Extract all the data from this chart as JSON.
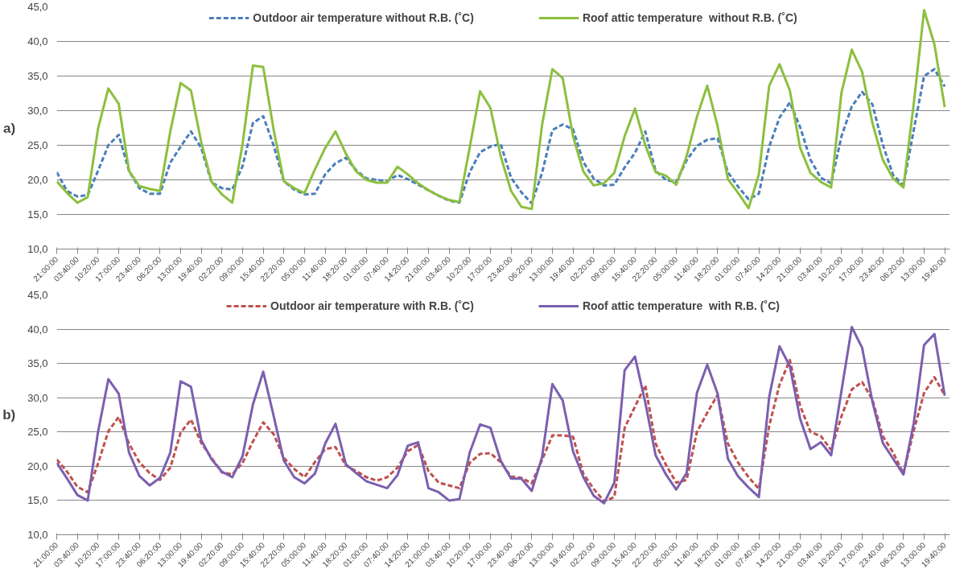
{
  "chart_data": [
    {
      "type": "line",
      "annotations": [
        "a)"
      ],
      "ylim": [
        10,
        45
      ],
      "yticks": [
        {
          "value": 10,
          "label": "10,0"
        },
        {
          "value": 15,
          "label": "15,0"
        },
        {
          "value": 20,
          "label": "20,0"
        },
        {
          "value": 25,
          "label": "25,0"
        },
        {
          "value": 30,
          "label": "30,0"
        },
        {
          "value": 35,
          "label": "35,0"
        },
        {
          "value": 40,
          "label": "40,0"
        },
        {
          "value": 45,
          "label": "45,0"
        }
      ],
      "categories": [
        "21:00:00",
        null,
        "03:40:00",
        null,
        "10:20:00",
        null,
        "17:00:00",
        null,
        "23:40:00",
        null,
        "06:20:00",
        null,
        "13:00:00",
        null,
        "19:40:00",
        null,
        "02:20:00",
        null,
        "09:00:00",
        null,
        "15:40:00",
        null,
        "22:20:00",
        null,
        "05:00:00",
        null,
        "11:40:00",
        null,
        "18:20:00",
        null,
        "01:00:00",
        null,
        "07:40:00",
        null,
        "14:20:00",
        null,
        "21:00:00",
        null,
        "03:40:00",
        null,
        "10:20:00",
        null,
        "17:00:00",
        null,
        "23:40:00",
        null,
        "06:20:00",
        null,
        "13:00:00",
        null,
        "19:40:00",
        null,
        "02:20:00",
        null,
        "09:00:00",
        null,
        "15:40:00",
        null,
        "22:20:00",
        null,
        "05:00:00",
        null,
        "11:40:00",
        null,
        "18:20:00",
        null,
        "01:00:00",
        null,
        "07:40:00",
        null,
        "14:20:00",
        null,
        "21:00:00",
        null,
        "03:40:00",
        null,
        "10:20:00",
        null,
        "17:00:00",
        null,
        "23:40:00",
        null,
        "06:20:00",
        null,
        "13:00:00",
        null,
        "19:40:00"
      ],
      "grid": "y",
      "legend": "top",
      "marker": "none",
      "series": [
        {
          "name": "Outdoor air temperature without R.B. (˚C)",
          "color": "#4a7ebb",
          "line_style": "dashed",
          "values": [
            21.1,
            18.4,
            17.6,
            17.8,
            21.3,
            25.0,
            26.5,
            21.3,
            18.8,
            18.0,
            18.0,
            22.5,
            24.8,
            27.0,
            24.6,
            19.6,
            18.8,
            18.6,
            22.0,
            28.2,
            29.2,
            25.0,
            19.8,
            18.6,
            17.9,
            18.0,
            20.8,
            22.4,
            23.2,
            21.4,
            20.2,
            20.0,
            19.8,
            20.7,
            20.1,
            19.3,
            18.5,
            17.7,
            17.0,
            16.7,
            21.1,
            24.0,
            24.8,
            25.2,
            20.3,
            18.2,
            16.6,
            21.0,
            27.2,
            28.0,
            27.3,
            22.6,
            20.2,
            19.2,
            19.3,
            21.8,
            23.9,
            27.0,
            21.3,
            20.0,
            19.7,
            22.8,
            24.9,
            25.8,
            26.0,
            21.1,
            19.0,
            17.2,
            18.0,
            24.8,
            29.0,
            31.2,
            27.6,
            22.9,
            20.3,
            19.5,
            26.3,
            30.6,
            32.7,
            30.9,
            25.1,
            20.7,
            19.2,
            27.2,
            35.0,
            36.0,
            33.5
          ]
        },
        {
          "name": "Roof attic temperature  without R.B. (˚C)",
          "color": "#8cbf3f",
          "line_style": "solid",
          "values": [
            19.8,
            18.1,
            16.7,
            17.5,
            27.4,
            33.2,
            31.0,
            21.3,
            19.1,
            18.7,
            18.4,
            27.0,
            34.0,
            32.9,
            25.4,
            19.7,
            17.9,
            16.7,
            25.2,
            36.5,
            36.3,
            27.3,
            19.8,
            18.8,
            18.1,
            21.5,
            24.6,
            27.0,
            23.8,
            21.2,
            20.0,
            19.6,
            19.6,
            21.9,
            20.8,
            19.5,
            18.5,
            17.7,
            17.1,
            16.8,
            24.7,
            32.8,
            30.4,
            23.4,
            18.4,
            16.1,
            15.8,
            27.9,
            36.0,
            34.7,
            26.3,
            21.2,
            19.2,
            19.5,
            21.0,
            26.3,
            30.3,
            25.0,
            21.1,
            20.6,
            19.3,
            23.4,
            29.1,
            33.6,
            27.8,
            20.1,
            18.1,
            15.9,
            20.8,
            33.6,
            36.7,
            32.9,
            24.6,
            21.0,
            19.7,
            18.9,
            32.6,
            38.8,
            35.6,
            28.2,
            22.9,
            20.2,
            18.9,
            31.0,
            44.5,
            39.6,
            30.5
          ]
        }
      ]
    },
    {
      "type": "line",
      "annotations": [
        "b)"
      ],
      "ylim": [
        10,
        45
      ],
      "yticks": [
        {
          "value": 10,
          "label": "10,0"
        },
        {
          "value": 15,
          "label": "15,0"
        },
        {
          "value": 20,
          "label": "20,0"
        },
        {
          "value": 25,
          "label": "25,0"
        },
        {
          "value": 30,
          "label": "30,0"
        },
        {
          "value": 35,
          "label": "35,0"
        },
        {
          "value": 40,
          "label": "40,0"
        },
        {
          "value": 45,
          "label": "45,0"
        }
      ],
      "categories": [
        "21:00:00",
        null,
        "03:40:00",
        null,
        "10:20:00",
        null,
        "17:00:00",
        null,
        "23:40:00",
        null,
        "06:20:00",
        null,
        "13:00:00",
        null,
        "19:40:00",
        null,
        "02:20:00",
        null,
        "09:00:00",
        null,
        "15:40:00",
        null,
        "22:20:00",
        null,
        "05:00:00",
        null,
        "11:40:00",
        null,
        "18:20:00",
        null,
        "01:00:00",
        null,
        "07:40:00",
        null,
        "14:20:00",
        null,
        "21:00:00",
        null,
        "03:40:00",
        null,
        "10:20:00",
        null,
        "17:00:00",
        null,
        "23:40:00",
        null,
        "06:20:00",
        null,
        "13:00:00",
        null,
        "19:40:00",
        null,
        "02:20:00",
        null,
        "09:00:00",
        null,
        "15:40:00",
        null,
        "22:20:00",
        null,
        "05:00:00",
        null,
        "11:40:00",
        null,
        "18:20:00",
        null,
        "01:00:00",
        null,
        "07:40:00",
        null,
        "14:20:00",
        null,
        "21:00:00",
        null,
        "03:40:00",
        null,
        "10:20:00",
        null,
        "17:00:00",
        null,
        "23:40:00",
        null,
        "06:20:00",
        null,
        "13:00:00",
        null,
        "19:40:00"
      ],
      "grid": "y",
      "legend": "top",
      "marker": "none",
      "series": [
        {
          "name": "Outdoor air temperature with R.B. (˚C)",
          "color": "#c0504d",
          "line_style": "dashed",
          "values": [
            21.0,
            19.2,
            17.0,
            16.2,
            20.4,
            25.1,
            27.2,
            23.3,
            20.6,
            19.0,
            18.0,
            19.8,
            24.9,
            26.8,
            23.4,
            21.2,
            19.1,
            18.8,
            20.5,
            23.6,
            26.4,
            24.7,
            21.2,
            19.6,
            18.4,
            20.6,
            22.5,
            22.8,
            20.1,
            19.3,
            18.4,
            17.9,
            18.4,
            19.8,
            22.2,
            23.1,
            19.3,
            17.6,
            17.2,
            16.8,
            20.5,
            21.8,
            21.9,
            20.6,
            18.5,
            18.3,
            17.5,
            20.9,
            24.5,
            24.5,
            24.3,
            18.9,
            16.7,
            14.9,
            15.5,
            25.6,
            28.7,
            31.8,
            23.3,
            20.2,
            17.6,
            18.0,
            25.0,
            27.8,
            30.4,
            23.3,
            20.5,
            18.4,
            16.7,
            25.9,
            31.9,
            35.5,
            28.8,
            25.0,
            24.4,
            22.4,
            27.3,
            31.2,
            32.3,
            29.7,
            24.4,
            22.0,
            18.9,
            25.2,
            30.7,
            33.0,
            30.4
          ]
        },
        {
          "name": "Roof attic temperature  with R.B. (˚C)",
          "color": "#7b5fb0",
          "line_style": "solid",
          "values": [
            20.5,
            18.2,
            15.8,
            15.0,
            25.0,
            32.7,
            30.6,
            22.0,
            18.6,
            17.2,
            18.3,
            22.0,
            32.4,
            31.6,
            23.8,
            21.0,
            19.2,
            18.4,
            21.5,
            29.0,
            33.8,
            27.4,
            20.8,
            18.4,
            17.5,
            18.9,
            23.3,
            26.2,
            20.3,
            19.0,
            17.8,
            17.3,
            16.8,
            18.7,
            23.0,
            23.5,
            16.8,
            16.2,
            15.0,
            15.2,
            22.0,
            26.1,
            25.6,
            20.8,
            18.2,
            18.2,
            16.4,
            21.3,
            32.0,
            29.6,
            22.2,
            18.4,
            15.7,
            14.6,
            17.6,
            34.0,
            36.0,
            29.3,
            21.6,
            18.8,
            16.6,
            19.0,
            30.7,
            34.8,
            30.6,
            21.1,
            18.5,
            16.9,
            15.5,
            30.1,
            37.5,
            34.6,
            26.9,
            22.5,
            23.5,
            21.6,
            31.0,
            40.3,
            37.3,
            29.4,
            23.4,
            21.1,
            18.8,
            26.3,
            37.7,
            39.3,
            30.3
          ]
        }
      ]
    }
  ]
}
